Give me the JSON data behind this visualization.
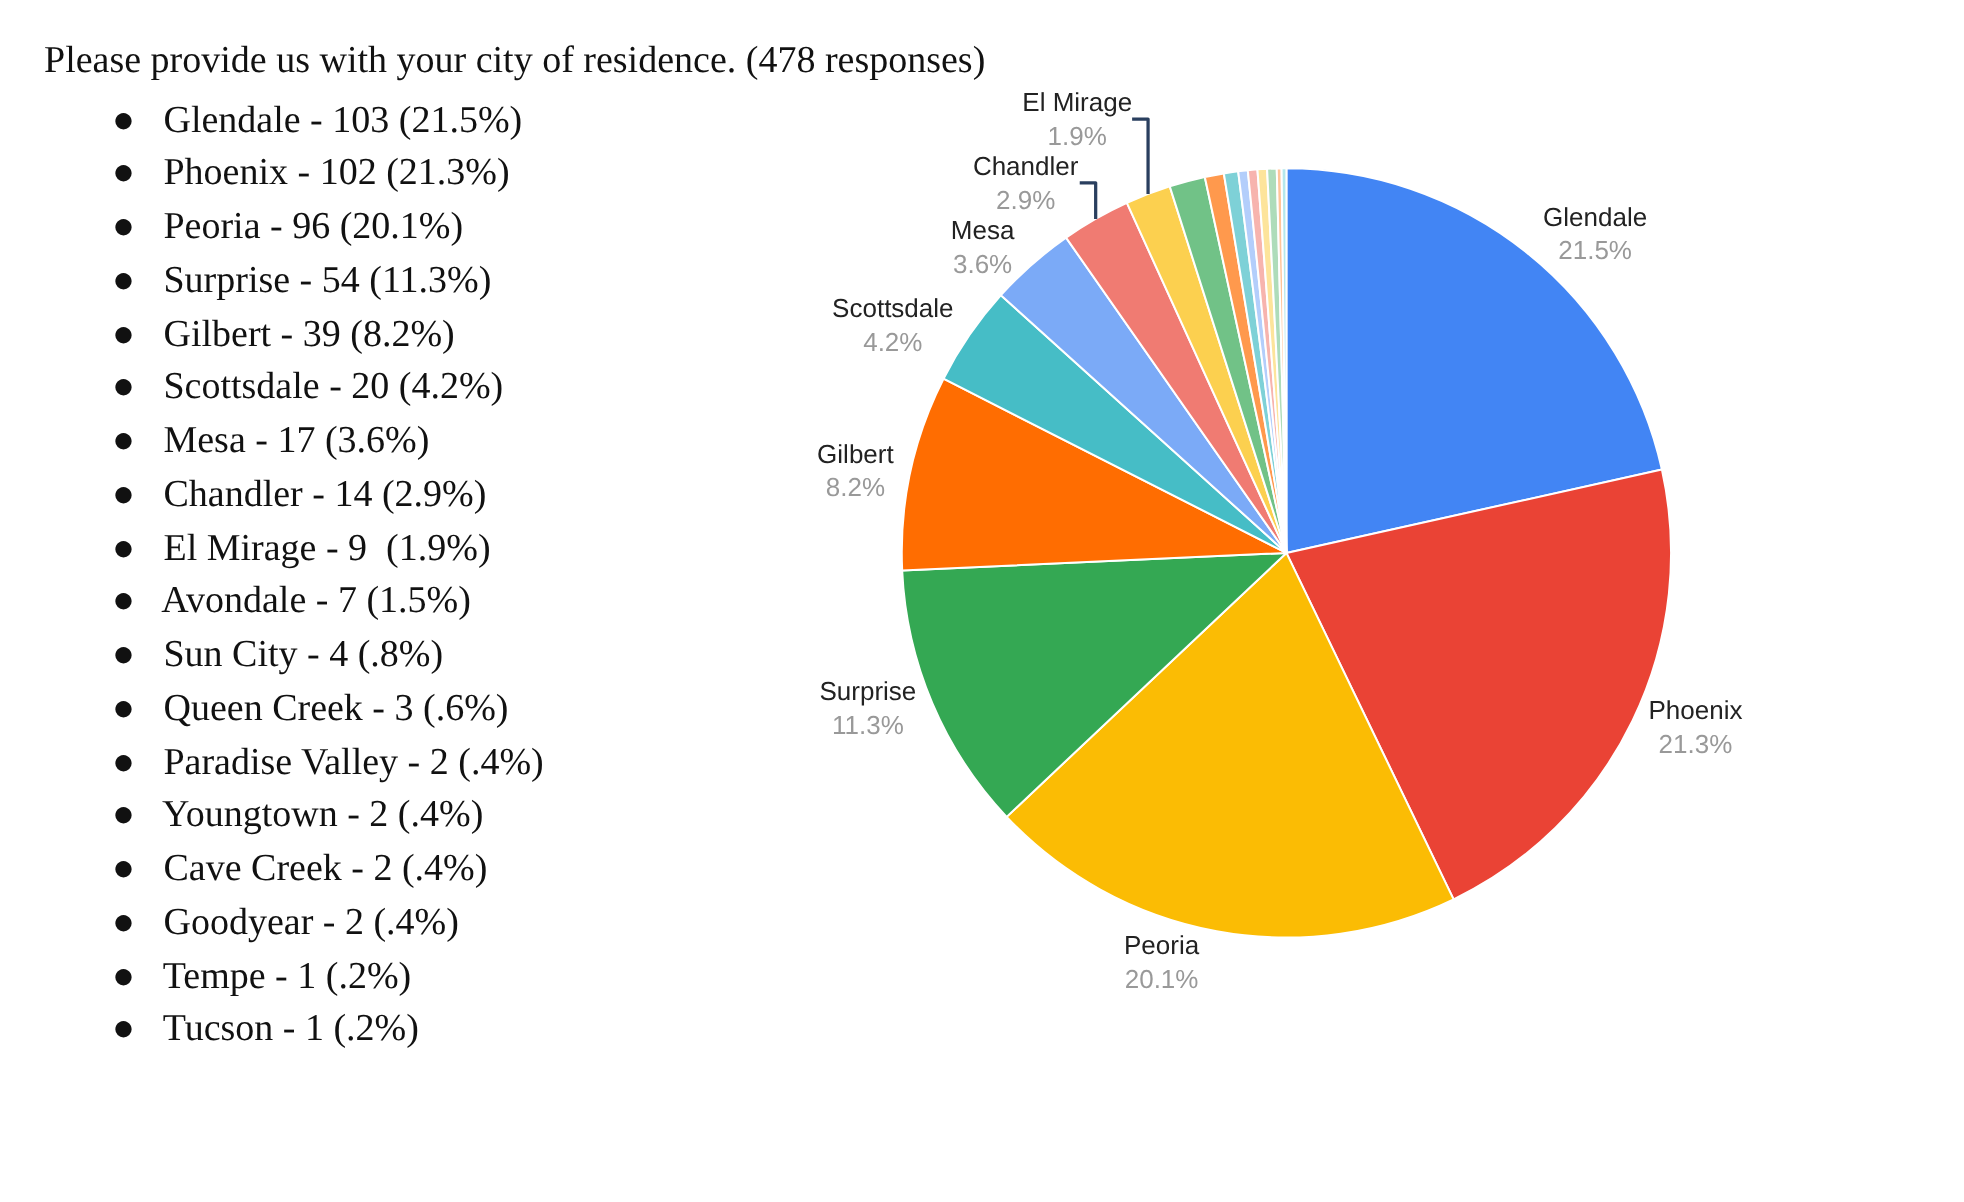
{
  "chart_data": {
    "type": "pie",
    "title": "Please provide us with your city of residence. (478 responses)",
    "categories": [
      "Glendale",
      "Phoenix",
      "Peoria",
      "Surprise",
      "Gilbert",
      "Scottsdale",
      "Mesa",
      "Chandler",
      "El Mirage",
      null,
      null,
      null,
      null,
      null,
      null,
      null,
      null,
      null
    ],
    "values": [
      21.5,
      21.3,
      20.1,
      11.3,
      8.2,
      4.2,
      3.6,
      2.9,
      1.9,
      1.5,
      0.8,
      0.6,
      0.4,
      0.4,
      0.4,
      0.4,
      0.2,
      0.2
    ],
    "value_labels": [
      "21.5%",
      "21.3%",
      "20.1%",
      "11.3%",
      "8.2%",
      "4.2%",
      "3.6%",
      "2.9%",
      "1.9%",
      null,
      null,
      null,
      null,
      null,
      null,
      null,
      null,
      null
    ],
    "colors": [
      "#4285f4",
      "#ea4335",
      "#fbbc04",
      "#34a853",
      "#ff6d01",
      "#46bdc6",
      "#7baaf7",
      "#f07b72",
      "#fcd04f",
      "#71c287",
      "#ff994d",
      "#7ed1d7",
      "#b3cefb",
      "#f7b4ae",
      "#fde49b",
      "#aedcba",
      "#ffc599",
      "#b5e8ec"
    ],
    "annotations": [
      "●   Glendale - 103 (21.5%)",
      "●   Phoenix - 102 (21.3%)",
      "●   Peoria - 96 (20.1%)",
      "●   Surprise - 54 (11.3%)",
      "●   Gilbert - 39 (8.2%)",
      "●   Scottsdale - 20 (4.2%)",
      "●   Mesa - 17 (3.6%)",
      "●   Chandler - 14 (2.9%)",
      "●   El Mirage - 9  (1.9%)",
      "●   Avondale - 7 (1.5%)",
      "●   Sun City - 4 (.8%)",
      "●   Queen Creek - 3 (.6%)",
      "●   Paradise Valley - 2 (.4%)",
      "●   Youngtown - 2 (.4%)",
      "●   Cave Creek - 2 (.4%)",
      "●   Goodyear - 2 (.4%)",
      "●   Tempe - 1 (.2%)",
      "●   Tucson - 1 (.2%)"
    ],
    "legend": false
  }
}
